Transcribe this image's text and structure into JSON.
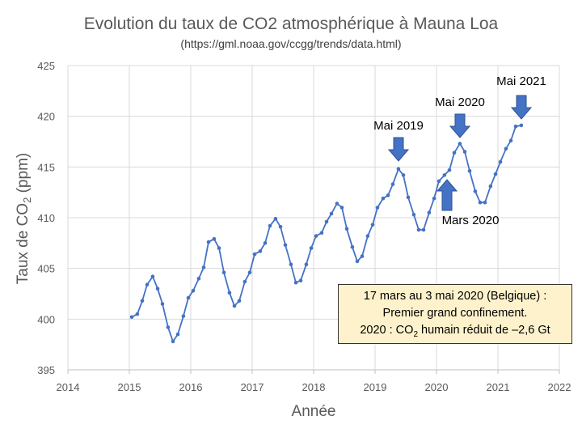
{
  "chart_data": {
    "type": "line",
    "title": "Evolution du taux de CO2 atmosphérique à Mauna Loa",
    "subtitle": "(https://gml.noaa.gov/ccgg/trends/data.html)",
    "xlabel": "Année",
    "ylabel_pre": "Taux de CO",
    "ylabel_sub": "2",
    "ylabel_post": " (ppm)",
    "xlim": [
      2014,
      2022
    ],
    "ylim": [
      395,
      425
    ],
    "xticks": [
      2014,
      2015,
      2016,
      2017,
      2018,
      2019,
      2020,
      2021,
      2022
    ],
    "yticks": [
      395,
      400,
      405,
      410,
      415,
      420,
      425
    ],
    "grid": true,
    "series": [
      {
        "color": "#4472C4",
        "x": [
          2015.04,
          2015.13,
          2015.21,
          2015.29,
          2015.38,
          2015.46,
          2015.54,
          2015.63,
          2015.71,
          2015.79,
          2015.88,
          2015.96,
          2016.04,
          2016.13,
          2016.21,
          2016.29,
          2016.38,
          2016.46,
          2016.54,
          2016.63,
          2016.71,
          2016.79,
          2016.88,
          2016.96,
          2017.04,
          2017.13,
          2017.21,
          2017.29,
          2017.38,
          2017.46,
          2017.54,
          2017.63,
          2017.71,
          2017.79,
          2017.88,
          2017.96,
          2018.04,
          2018.13,
          2018.21,
          2018.29,
          2018.38,
          2018.46,
          2018.54,
          2018.63,
          2018.71,
          2018.79,
          2018.88,
          2018.96,
          2019.04,
          2019.13,
          2019.21,
          2019.29,
          2019.38,
          2019.46,
          2019.54,
          2019.63,
          2019.71,
          2019.79,
          2019.88,
          2019.96,
          2020.04,
          2020.13,
          2020.21,
          2020.29,
          2020.38,
          2020.46,
          2020.54,
          2020.63,
          2020.71,
          2020.79,
          2020.88,
          2020.96,
          2021.04,
          2021.13,
          2021.21,
          2021.29,
          2021.38
        ],
        "y": [
          400.2,
          400.5,
          401.8,
          403.4,
          404.2,
          403.0,
          401.5,
          399.2,
          397.8,
          398.5,
          400.3,
          402.1,
          402.8,
          404.0,
          405.1,
          407.6,
          407.9,
          407.0,
          404.6,
          402.6,
          401.3,
          401.8,
          403.7,
          404.6,
          406.4,
          406.7,
          407.5,
          409.2,
          409.9,
          409.1,
          407.3,
          405.4,
          403.6,
          403.8,
          405.4,
          407.0,
          408.2,
          408.5,
          409.6,
          410.4,
          411.4,
          411.0,
          408.9,
          407.1,
          405.7,
          406.2,
          408.2,
          409.3,
          411.0,
          411.9,
          412.2,
          413.3,
          414.8,
          414.2,
          412.0,
          410.3,
          408.8,
          408.8,
          410.5,
          411.9,
          413.6,
          414.2,
          414.7,
          416.4,
          417.3,
          416.5,
          414.6,
          412.6,
          411.5,
          411.5,
          413.1,
          414.3,
          415.5,
          416.8,
          417.6,
          419.0,
          419.1
        ]
      }
    ],
    "annotations": {
      "mai2019": "Mai 2019",
      "mai2020": "Mai 2020",
      "mai2021": "Mai 2021",
      "mars2020": "Mars 2020"
    }
  },
  "info_box": {
    "line1": "17 mars au 3 mai 2020 (Belgique) :",
    "line2": "Premier grand confinement.",
    "line3_pre": "2020 : CO",
    "line3_sub": "2",
    "line3_post": " humain réduit de –2,6 Gt"
  }
}
